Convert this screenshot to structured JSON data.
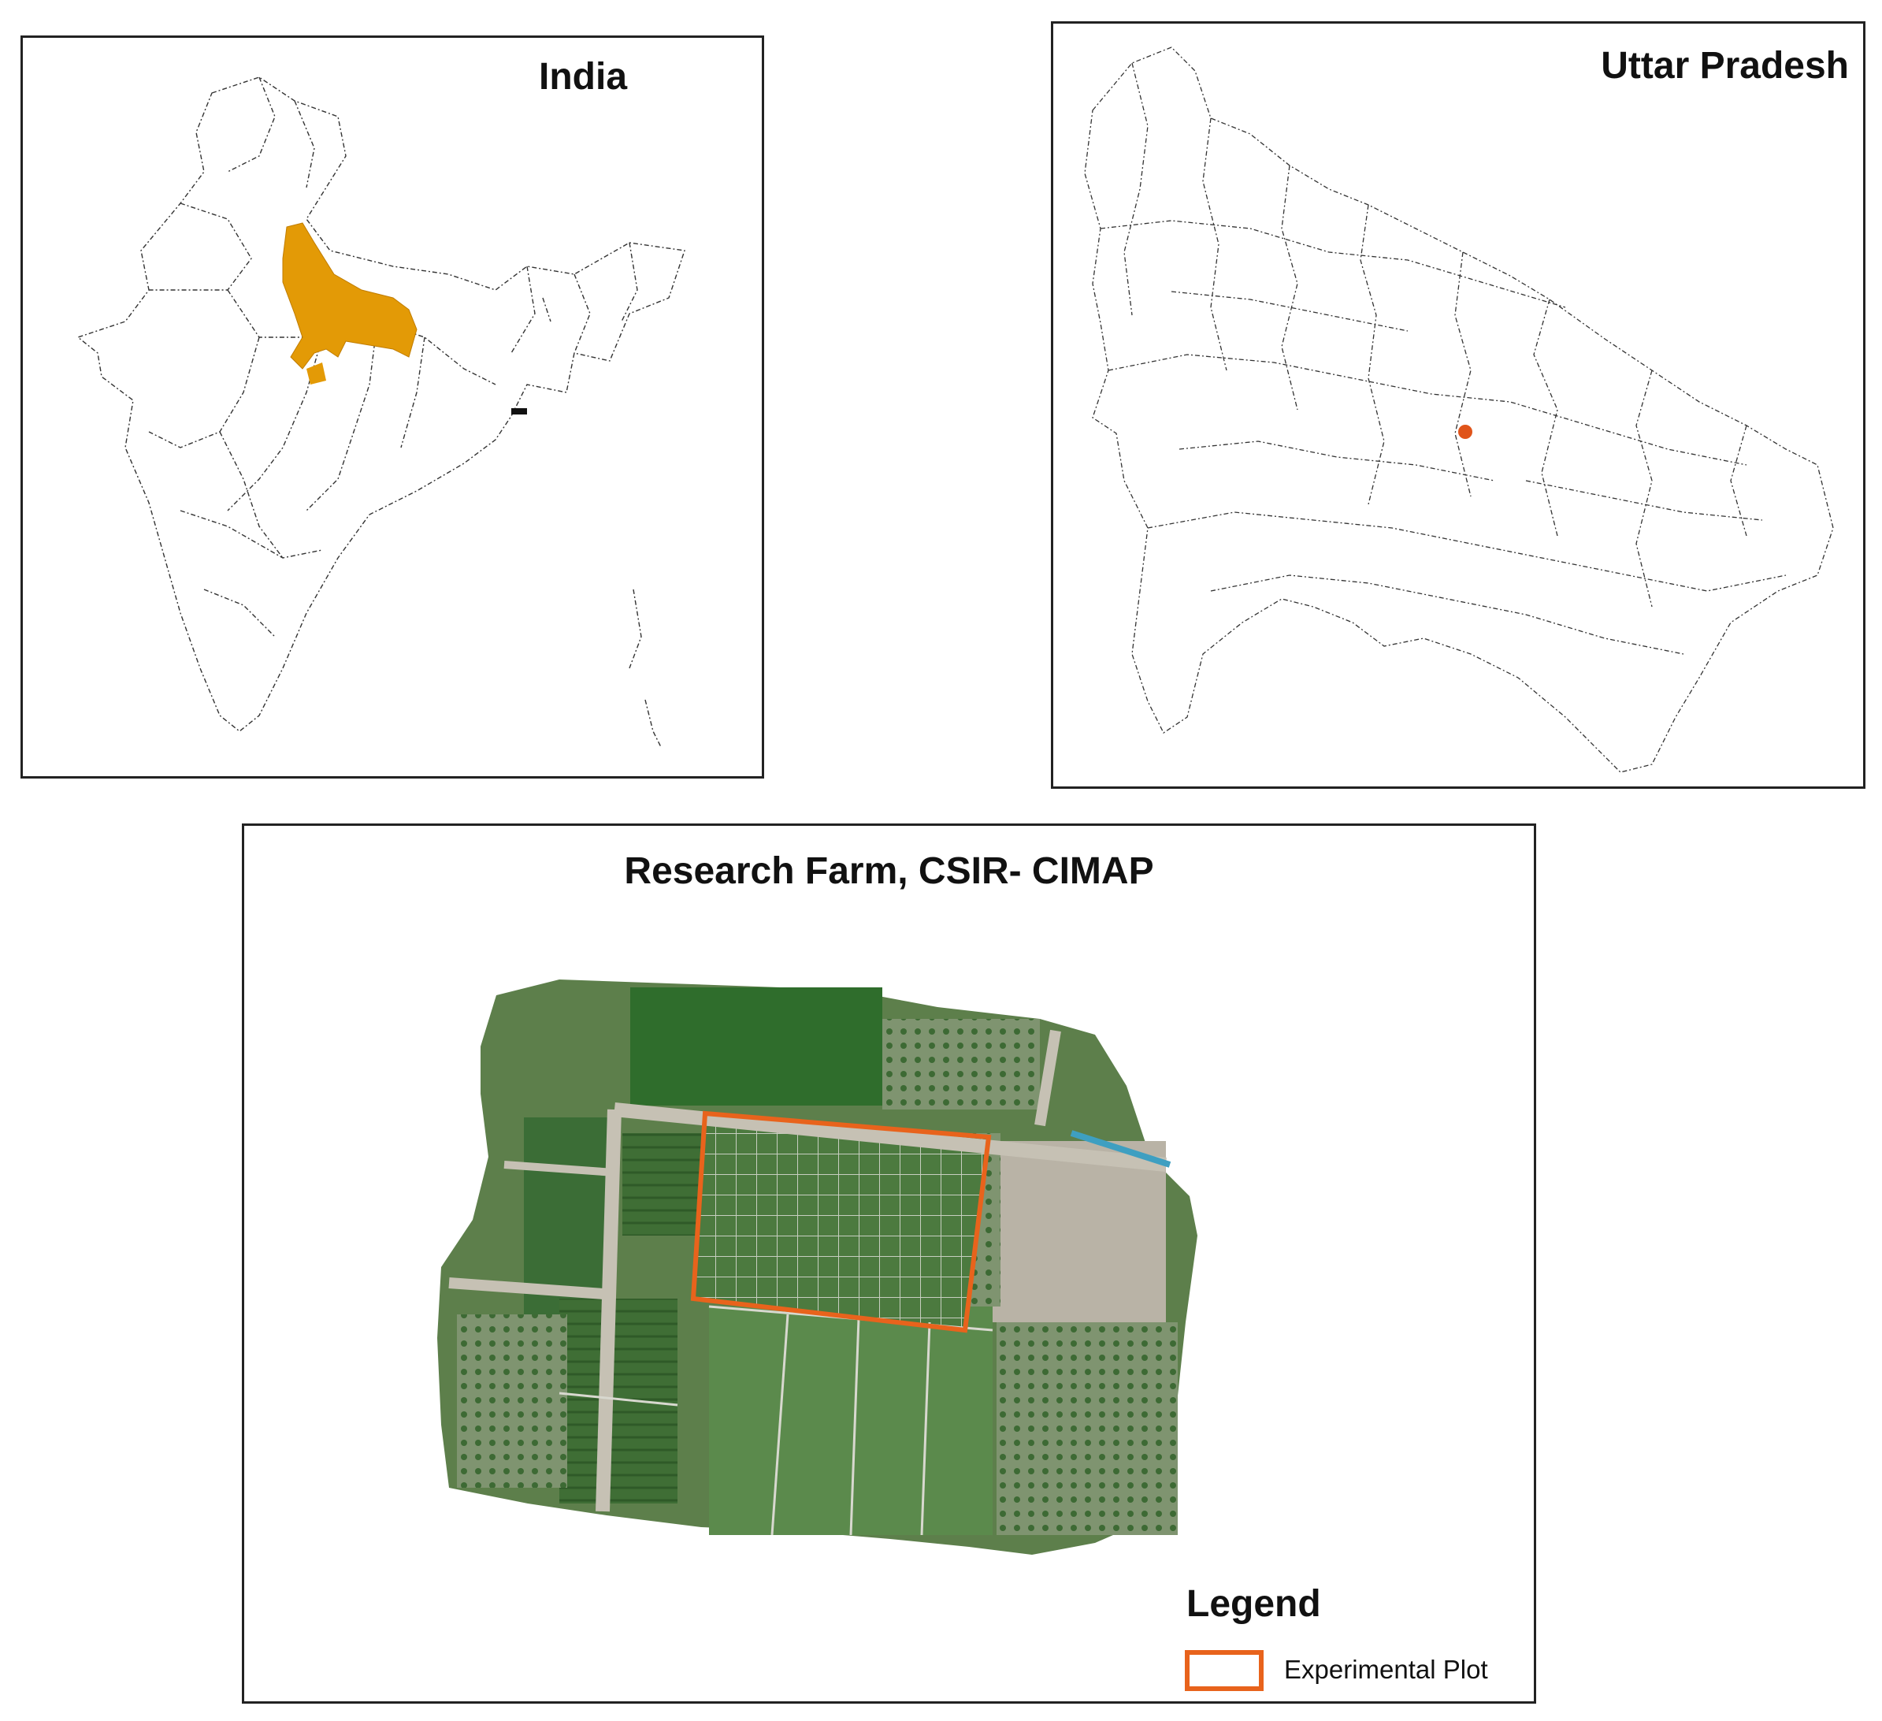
{
  "panels": {
    "india": {
      "title": "India",
      "highlight_color": "#e39a06"
    },
    "uttar_pradesh": {
      "title": "Uttar Pradesh",
      "marker_color": "#e0541a"
    },
    "farm": {
      "title": "Research Farm, CSIR- CIMAP",
      "legend": {
        "title": "Legend",
        "items": [
          {
            "label": "Experimental Plot",
            "color": "#e8631c"
          }
        ]
      }
    }
  }
}
